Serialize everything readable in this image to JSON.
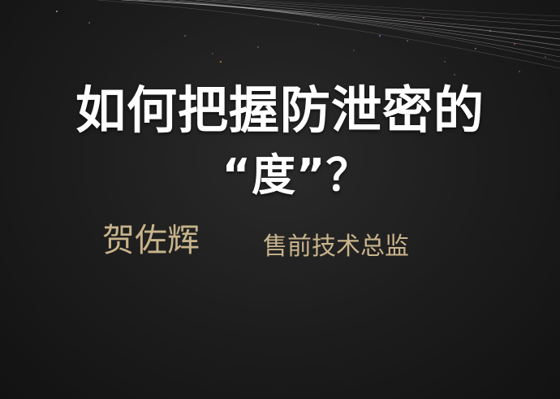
{
  "slide": {
    "title_line_1": "如何把握防泄密的",
    "title_line_2": "“度”？",
    "presenter_name": "贺佐辉",
    "presenter_role": "售前技术总监"
  },
  "colors": {
    "background": "#1c1c1c",
    "title": "#ffffff",
    "presenter": "#c8b48c",
    "decor_lines": "#d0d0d0"
  }
}
